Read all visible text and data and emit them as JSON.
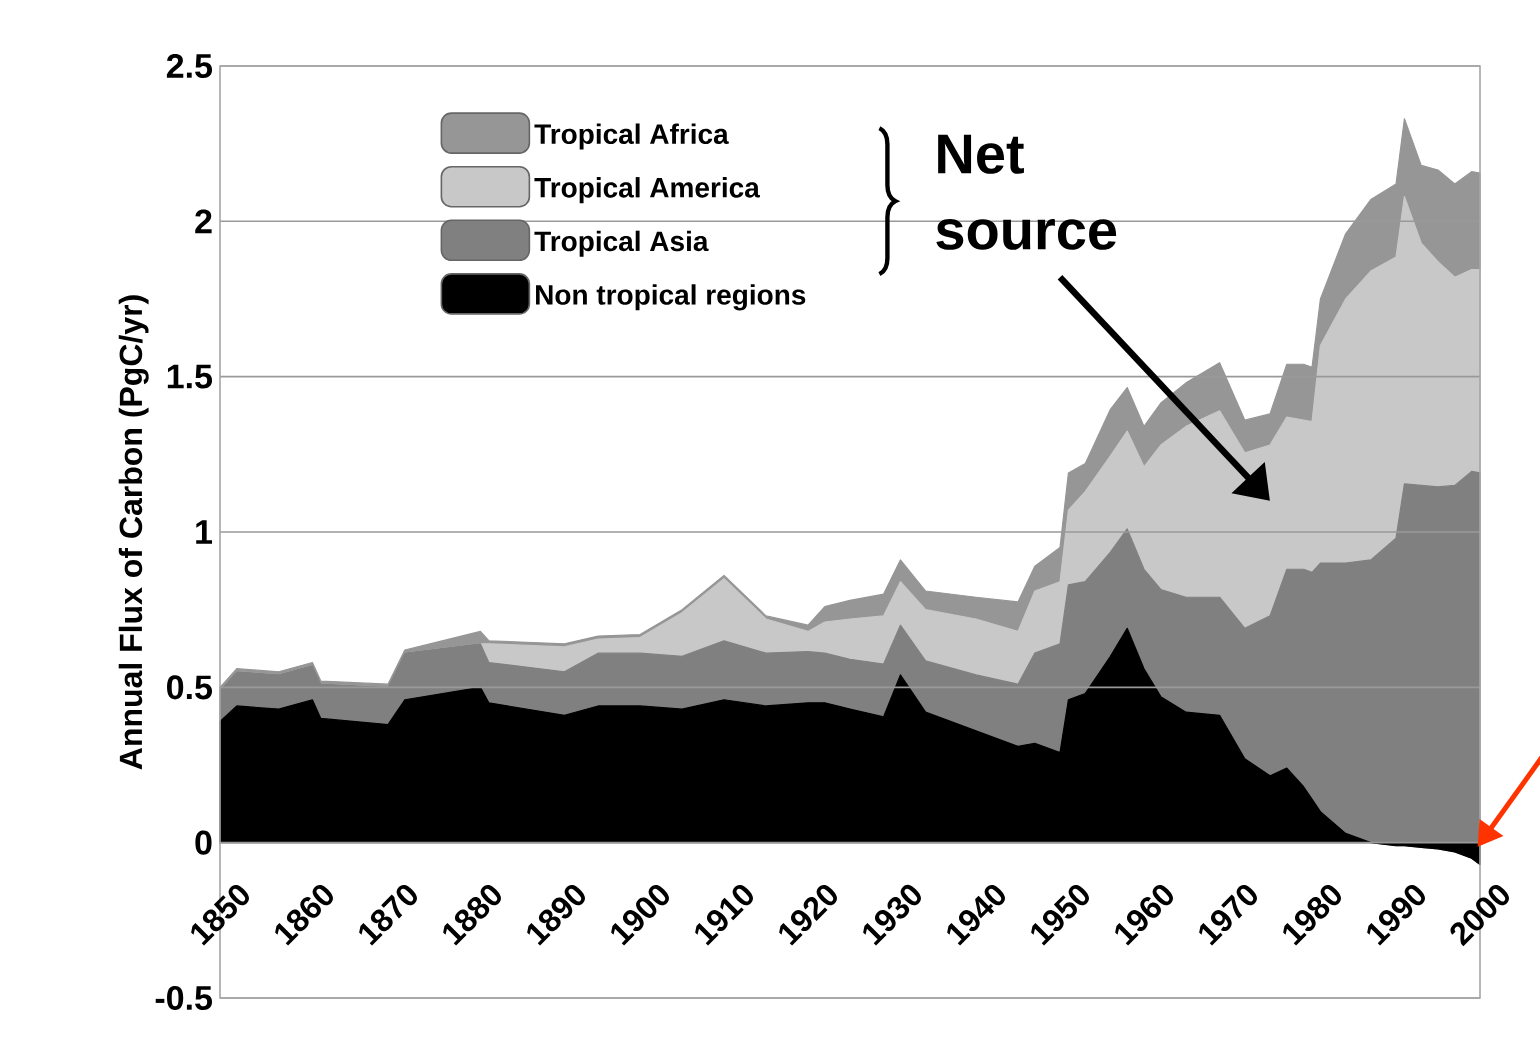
{
  "chart_data": {
    "type": "area",
    "stacked": true,
    "ylabel": "Annual Flux of Carbon (PgC/yr)",
    "x": [
      1850,
      1852,
      1857,
      1861,
      1862,
      1870,
      1872,
      1881,
      1882,
      1891,
      1895,
      1900,
      1905,
      1910,
      1915,
      1920,
      1922,
      1925,
      1929,
      1931,
      1934,
      1940,
      1945,
      1947,
      1950,
      1951,
      1953,
      1956,
      1958,
      1960,
      1962,
      1965,
      1969,
      1972,
      1975,
      1977,
      1979,
      1980,
      1981,
      1984,
      1987,
      1990,
      1991,
      1993,
      1995,
      1997,
      1999,
      2000
    ],
    "series": [
      {
        "name": "Non tropical regions",
        "color": "#000000",
        "values": [
          0.39,
          0.44,
          0.43,
          0.46,
          0.4,
          0.38,
          0.46,
          0.5,
          0.45,
          0.41,
          0.44,
          0.44,
          0.43,
          0.46,
          0.44,
          0.45,
          0.45,
          0.43,
          0.405,
          0.54,
          0.42,
          0.36,
          0.31,
          0.32,
          0.29,
          0.46,
          0.48,
          0.6,
          0.69,
          0.56,
          0.47,
          0.42,
          0.41,
          0.27,
          0.215,
          0.24,
          0.18,
          0.14,
          0.1,
          0.03,
          0,
          -0.01,
          -0.01,
          -0.015,
          -0.02,
          -0.03,
          -0.05,
          -0.07
        ]
      },
      {
        "name": "Tropical Asia",
        "color": "#808080",
        "values": [
          0.1,
          0.11,
          0.11,
          0.11,
          0.11,
          0.12,
          0.15,
          0.14,
          0.13,
          0.14,
          0.17,
          0.17,
          0.17,
          0.19,
          0.17,
          0.165,
          0.16,
          0.16,
          0.17,
          0.16,
          0.165,
          0.18,
          0.2,
          0.29,
          0.35,
          0.37,
          0.36,
          0.335,
          0.32,
          0.32,
          0.345,
          0.37,
          0.38,
          0.42,
          0.515,
          0.64,
          0.7,
          0.73,
          0.8,
          0.87,
          0.91,
          0.99,
          1.165,
          1.165,
          1.165,
          1.18,
          1.245,
          1.26
        ]
      },
      {
        "name": "Tropical America",
        "color": "#c8c8c8",
        "values": [
          0,
          0,
          0,
          0,
          0,
          0,
          0,
          0,
          0.06,
          0.08,
          0.045,
          0.05,
          0.14,
          0.2,
          0.11,
          0.065,
          0.1,
          0.13,
          0.155,
          0.14,
          0.165,
          0.18,
          0.17,
          0.2,
          0.2,
          0.24,
          0.29,
          0.31,
          0.315,
          0.33,
          0.465,
          0.55,
          0.6,
          0.565,
          0.55,
          0.49,
          0.48,
          0.485,
          0.7,
          0.85,
          0.93,
          0.905,
          0.925,
          0.78,
          0.725,
          0.67,
          0.65,
          0.655
        ]
      },
      {
        "name": "Tropical Africa",
        "color": "#969696",
        "values": [
          0.01,
          0.01,
          0.01,
          0.01,
          0.01,
          0.01,
          0.01,
          0.04,
          0.01,
          0.01,
          0.01,
          0.01,
          0.01,
          0.01,
          0.01,
          0.02,
          0.05,
          0.06,
          0.07,
          0.07,
          0.06,
          0.07,
          0.095,
          0.08,
          0.11,
          0.12,
          0.09,
          0.15,
          0.14,
          0.13,
          0.135,
          0.14,
          0.155,
          0.105,
          0.1,
          0.17,
          0.18,
          0.175,
          0.15,
          0.21,
          0.23,
          0.235,
          0.25,
          0.25,
          0.295,
          0.3,
          0.315,
          0.31
        ]
      }
    ],
    "xlim": [
      1850,
      2000
    ],
    "ylim": [
      -0.5,
      2.5
    ],
    "xticks": [
      1850,
      1860,
      1870,
      1880,
      1890,
      1900,
      1910,
      1920,
      1930,
      1940,
      1950,
      1960,
      1970,
      1980,
      1990,
      2000
    ],
    "yticks": [
      -0.5,
      0,
      0.5,
      1,
      1.5,
      2,
      2.5
    ],
    "grid": "y",
    "legend": "top left",
    "annotations": [
      "Net source"
    ]
  }
}
